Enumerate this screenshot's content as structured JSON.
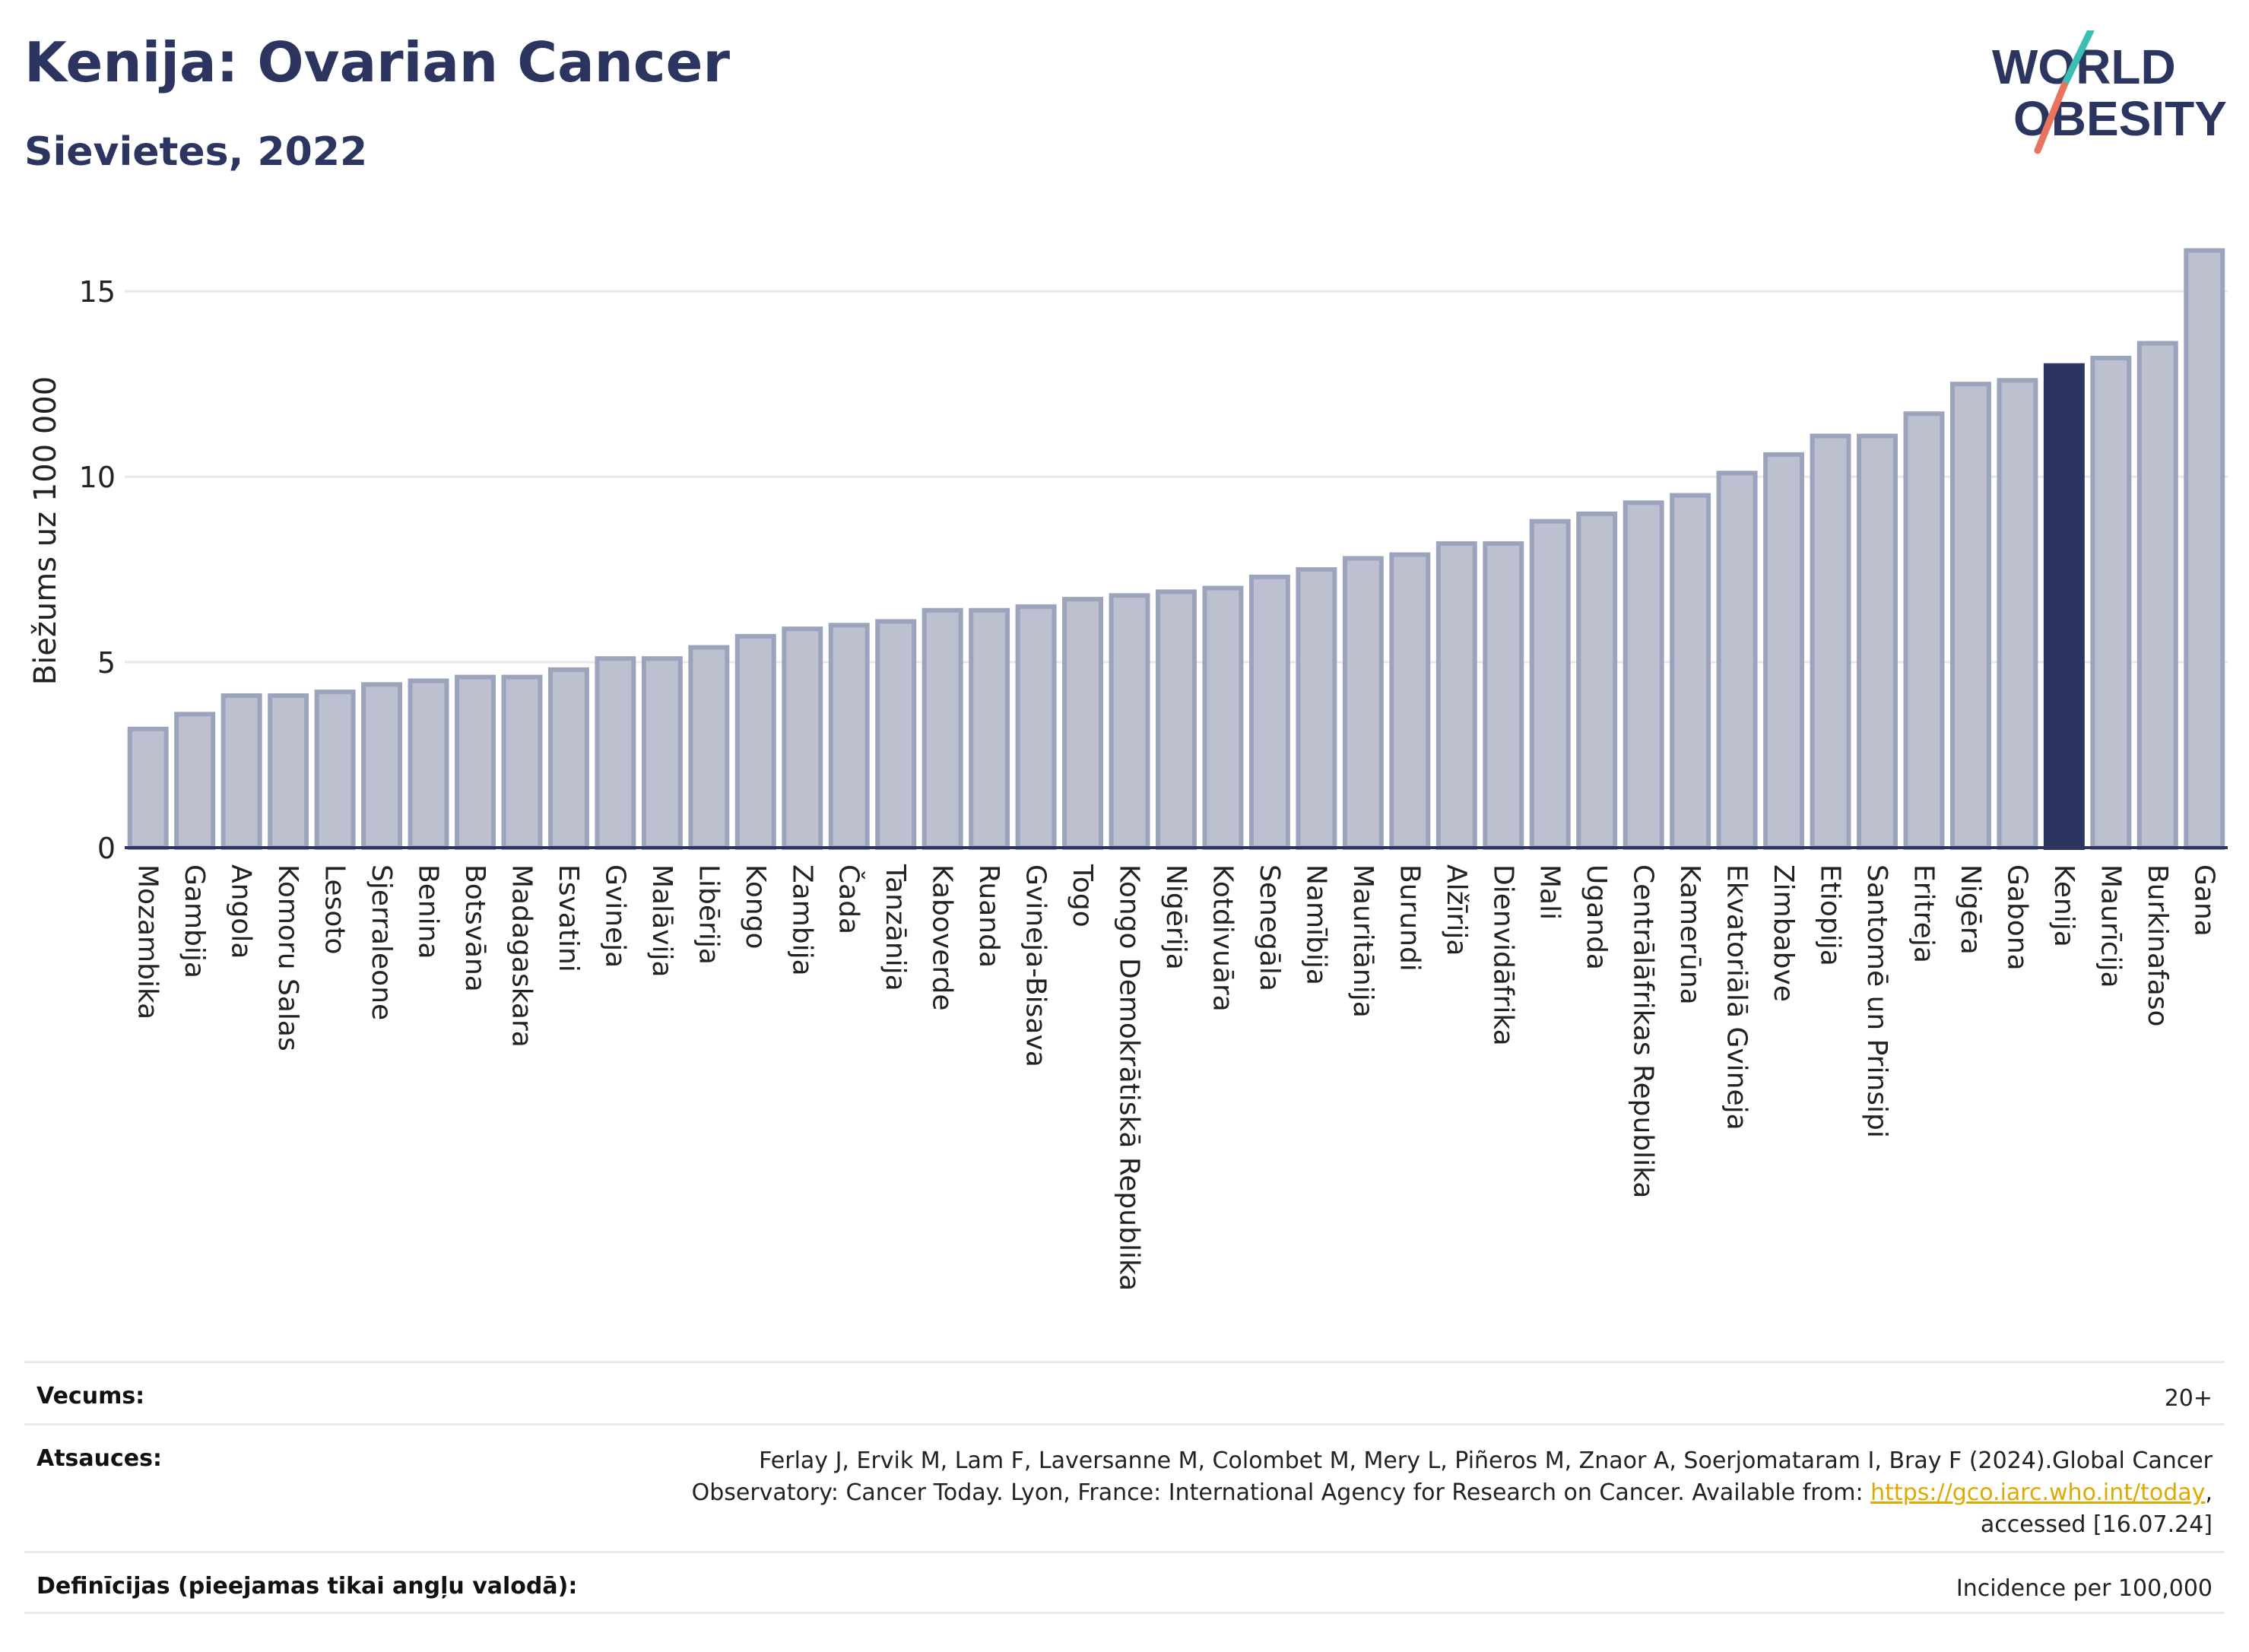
{
  "header": {
    "title": "Kenija: Ovarian Cancer",
    "subtitle": "Sievietes, 2022"
  },
  "logo": {
    "line1": "WORLD",
    "line2": "OBESITY",
    "colors": {
      "text": "#2b3560",
      "slash_teal": "#3bbfb4",
      "slash_coral": "#e8745f"
    }
  },
  "chart_data": {
    "type": "bar",
    "ylabel": "Biežums uz 100 000",
    "xlabel": "",
    "ylim": [
      0,
      16.5
    ],
    "yticks": [
      0,
      5,
      10,
      15
    ],
    "grid": true,
    "highlight": "Kenija",
    "colors": {
      "bar": "#bcc0cf",
      "bar_border": "#9ca3bd",
      "highlight": "#2b3560",
      "grid": "#e6e8ee"
    },
    "categories": [
      "Mozambika",
      "Gambija",
      "Angola",
      "Komoru Salas",
      "Lesoto",
      "Sjerraleone",
      "Benina",
      "Botsvāna",
      "Madagaskara",
      "Esvatini",
      "Gvineja",
      "Malāvija",
      "Libērija",
      "Kongo",
      "Zambija",
      "Čada",
      "Tanzānija",
      "Kaboverde",
      "Ruanda",
      "Gvineja-Bisava",
      "Togo",
      "Kongo Demokrātiskā Republika",
      "Nigērija",
      "Kotdivuāra",
      "Senegāla",
      "Namībija",
      "Mauritānija",
      "Burundi",
      "Alžīrija",
      "Dienvidāfrika",
      "Mali",
      "Uganda",
      "Centrālāfrikas Republika",
      "Kamerūna",
      "Ekvatoriālā Gvineja",
      "Zimbabve",
      "Etiopija",
      "Santomē un Prinsipi",
      "Eritreja",
      "Nigēra",
      "Gabona",
      "Kenija",
      "Maurīcija",
      "Burkinafaso",
      "Gana"
    ],
    "values": [
      3.2,
      3.6,
      4.1,
      4.1,
      4.2,
      4.4,
      4.5,
      4.6,
      4.6,
      4.8,
      5.1,
      5.1,
      5.4,
      5.7,
      5.9,
      6.0,
      6.1,
      6.4,
      6.4,
      6.5,
      6.7,
      6.8,
      6.9,
      7.0,
      7.3,
      7.5,
      7.8,
      7.9,
      8.2,
      8.2,
      8.8,
      9.0,
      9.3,
      9.5,
      10.1,
      10.6,
      11.1,
      11.1,
      11.7,
      12.5,
      12.6,
      13.0,
      13.2,
      13.6,
      16.1
    ]
  },
  "meta": {
    "age_label": "Vecums:",
    "age_value": "20+",
    "refs_label": "Atsauces:",
    "refs_line1": "Ferlay J, Ervik M, Lam F, Laversanne M, Colombet M, Mery L, Piñeros M, Znaor A, Soerjomataram I, Bray F (2024).Global Cancer",
    "refs_line2": "Observatory: Cancer Today. Lyon, France: International Agency for Research on Cancer. Available from: ",
    "refs_link": "https://gco.iarc.who.int/today",
    "refs_line2_end": ",",
    "refs_line3": "accessed [16.07.24]",
    "def_label": "Definīcijas (pieejamas tikai angļu valodā):",
    "def_value": "Incidence per 100,000"
  }
}
